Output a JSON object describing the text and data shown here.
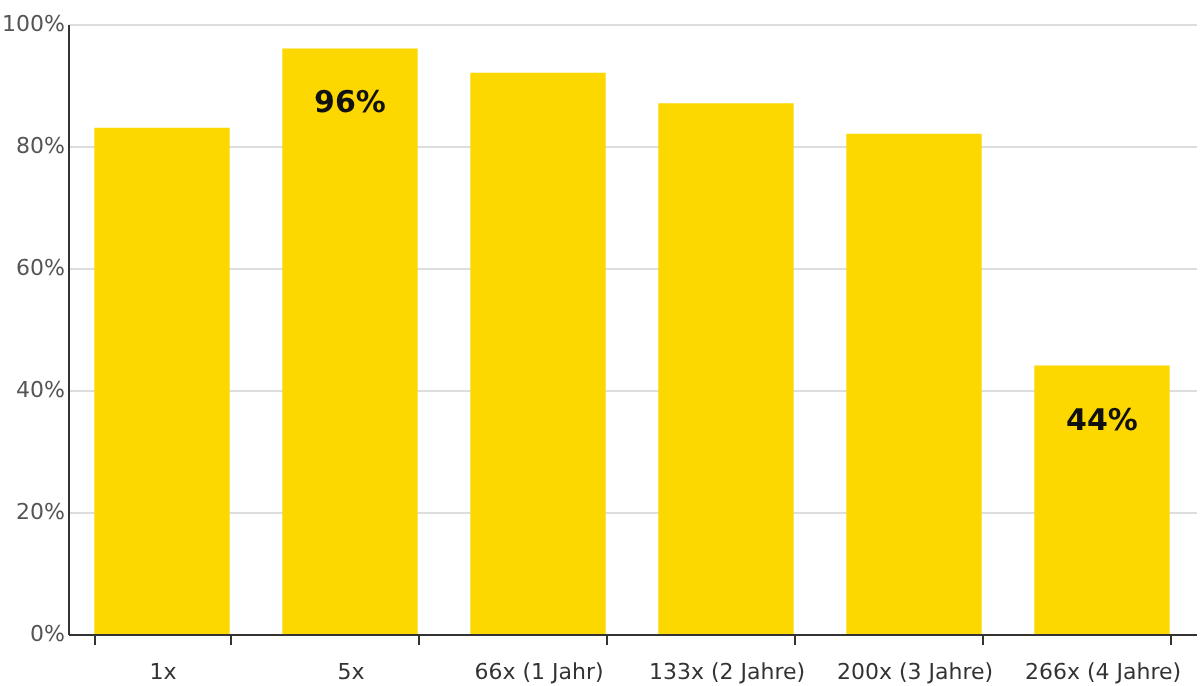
{
  "chart_data": {
    "type": "bar",
    "categories": [
      "1x",
      "5x",
      "66x (1 Jahr)",
      "133x (2 Jahre)",
      "200x (3 Jahre)",
      "266x (4 Jahre)"
    ],
    "values": [
      83,
      96,
      92,
      87,
      82,
      44
    ],
    "value_labels": [
      null,
      "96%",
      null,
      null,
      null,
      "44%"
    ],
    "color": "#fdd700",
    "ylim": [
      0,
      100
    ],
    "yticks": [
      {
        "value": 0,
        "label": "0%"
      },
      {
        "value": 20,
        "label": "20%"
      },
      {
        "value": 40,
        "label": "40%"
      },
      {
        "value": 60,
        "label": "60%"
      },
      {
        "value": 80,
        "label": "80%"
      },
      {
        "value": 100,
        "label": "100%"
      }
    ],
    "grid": "y"
  }
}
